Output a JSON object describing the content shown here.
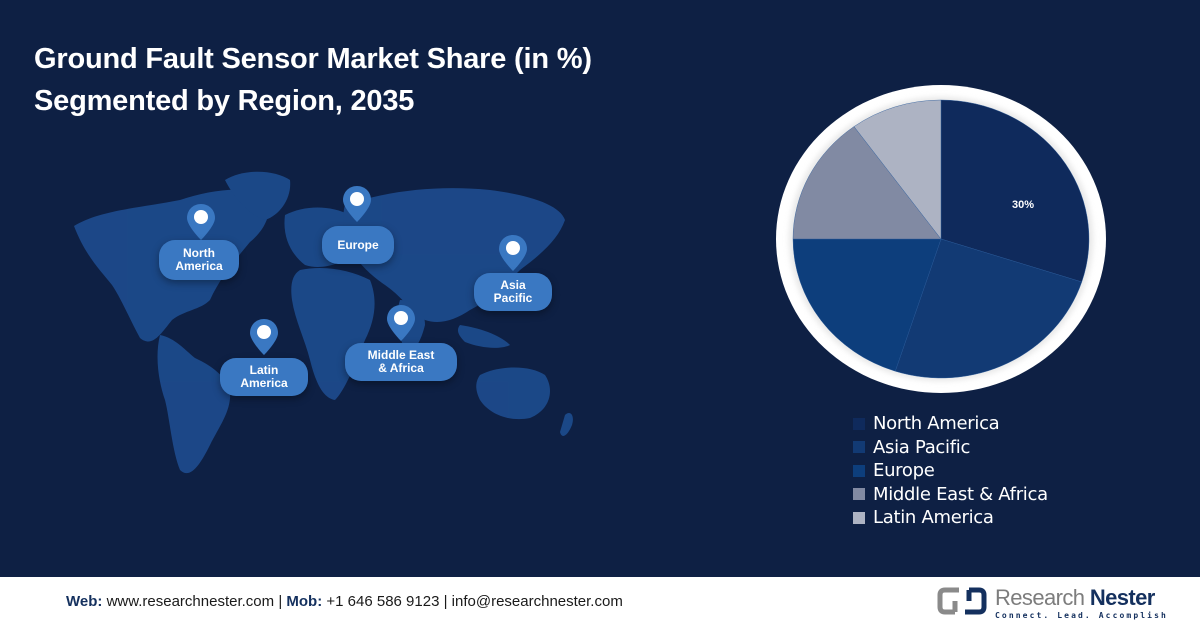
{
  "title": {
    "line1": "Ground Fault Sensor Market Share (in %)",
    "line2": "Segmented by Region, 2035"
  },
  "map": {
    "pins": [
      {
        "id": "north-america",
        "label_l1": "North",
        "label_l2": "America"
      },
      {
        "id": "europe",
        "label_l1": "Europe",
        "label_l2": ""
      },
      {
        "id": "asia-pacific",
        "label_l1": "Asia",
        "label_l2": "Pacific"
      },
      {
        "id": "latin-america",
        "label_l1": "Latin",
        "label_l2": "America"
      },
      {
        "id": "middle-east-africa",
        "label_l1": "Middle East",
        "label_l2": "& Africa"
      }
    ]
  },
  "colors": {
    "background": "#0e2044",
    "map_land": "#1e4f93",
    "pin": "#3a78c2",
    "pie_ring": "#ffffff"
  },
  "chart_data": {
    "type": "pie",
    "title": "Ground Fault Sensor Market Share (in %) Segmented by Region, 2035",
    "categories": [
      "North America",
      "Asia Pacific",
      "Europe",
      "Middle East & Africa",
      "Latin America"
    ],
    "values": [
      30,
      25,
      20,
      15,
      10
    ],
    "colors": [
      "#0f2a5c",
      "#123a74",
      "#0d3e7c",
      "#818aa3",
      "#adb3c3"
    ],
    "data_labels": [
      "30%",
      "",
      "",
      "",
      ""
    ],
    "start_angle": "12 o'clock, clockwise",
    "legend_position": "bottom-right"
  },
  "legend": {
    "items": [
      {
        "label": "North America",
        "color": "#0f2a5c"
      },
      {
        "label": "Asia Pacific",
        "color": "#123a74"
      },
      {
        "label": "Europe",
        "color": "#0d3e7c"
      },
      {
        "label": "Middle East & Africa",
        "color": "#818aa3"
      },
      {
        "label": "Latin America",
        "color": "#adb3c3"
      }
    ]
  },
  "footer": {
    "web_label": "Web:",
    "web_value": "www.researchnester.com",
    "sep1": "|",
    "mob_label": "Mob:",
    "mob_value": "+1 646 586 9123",
    "sep2": "|",
    "email": "info@researchnester.com",
    "logo_name_1": "Research",
    "logo_name_2": "Nester",
    "logo_tagline": "Connect. Lead. Accomplish"
  }
}
